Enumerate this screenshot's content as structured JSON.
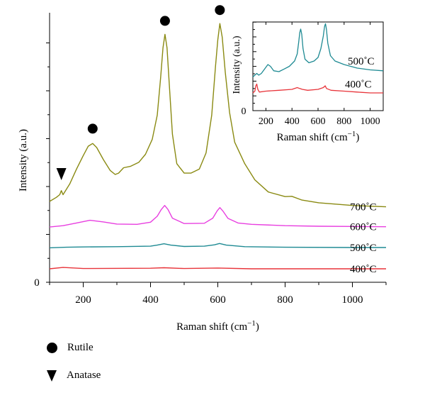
{
  "chart_data": [
    {
      "type": "line",
      "xlabel": "Raman shift (cm",
      "xlabel_sup": "−1",
      "xlabel_close": ")",
      "ylabel": "Intensity (a.u.)",
      "xlim": [
        100,
        1100
      ],
      "ylim": [
        0,
        100
      ],
      "x_ticks": [
        "200",
        "400",
        "600",
        "800",
        "1000"
      ],
      "y_ticks": [
        "0"
      ],
      "series": [
        {
          "name": "400˚C",
          "color": "#e8343a",
          "points": [
            [
              100,
              5.0
            ],
            [
              140,
              5.5
            ],
            [
              200,
              5.1
            ],
            [
              400,
              5.2
            ],
            [
              440,
              5.4
            ],
            [
              500,
              5.1
            ],
            [
              600,
              5.3
            ],
            [
              700,
              5.0
            ],
            [
              800,
              5.0
            ],
            [
              900,
              5.0
            ],
            [
              1000,
              5.0
            ],
            [
              1100,
              5.0
            ]
          ]
        },
        {
          "name": "500˚C",
          "color": "#1e8a93",
          "points": [
            [
              100,
              12.8
            ],
            [
              150,
              13.0
            ],
            [
              200,
              13.1
            ],
            [
              300,
              13.2
            ],
            [
              400,
              13.4
            ],
            [
              420,
              13.8
            ],
            [
              440,
              14.3
            ],
            [
              460,
              13.8
            ],
            [
              500,
              13.3
            ],
            [
              560,
              13.4
            ],
            [
              590,
              13.9
            ],
            [
              605,
              14.4
            ],
            [
              625,
              13.8
            ],
            [
              680,
              13.2
            ],
            [
              800,
              13.0
            ],
            [
              1000,
              12.9
            ],
            [
              1100,
              12.9
            ]
          ]
        },
        {
          "name": "600˚C",
          "color": "#e83fe0",
          "points": [
            [
              100,
              20.5
            ],
            [
              140,
              21.0
            ],
            [
              180,
              22.0
            ],
            [
              220,
              23.0
            ],
            [
              260,
              22.4
            ],
            [
              300,
              21.6
            ],
            [
              360,
              21.5
            ],
            [
              400,
              22.3
            ],
            [
              420,
              24.5
            ],
            [
              432,
              27.0
            ],
            [
              442,
              28.5
            ],
            [
              452,
              27.0
            ],
            [
              465,
              23.8
            ],
            [
              500,
              21.8
            ],
            [
              560,
              21.9
            ],
            [
              585,
              23.8
            ],
            [
              598,
              26.5
            ],
            [
              606,
              27.7
            ],
            [
              616,
              26.3
            ],
            [
              630,
              23.7
            ],
            [
              660,
              22.0
            ],
            [
              700,
              21.5
            ],
            [
              800,
              21.0
            ],
            [
              900,
              20.8
            ],
            [
              1000,
              20.7
            ],
            [
              1100,
              20.6
            ]
          ]
        },
        {
          "name": "700˚C",
          "color": "#8a8a12",
          "points": [
            [
              100,
              30.0
            ],
            [
              120,
              31.5
            ],
            [
              130,
              32.5
            ],
            [
              135,
              34.0
            ],
            [
              140,
              32.5
            ],
            [
              160,
              36.5
            ],
            [
              180,
              42.0
            ],
            [
              200,
              47.0
            ],
            [
              215,
              50.5
            ],
            [
              228,
              51.5
            ],
            [
              240,
              50.0
            ],
            [
              260,
              45.5
            ],
            [
              280,
              41.5
            ],
            [
              295,
              40.0
            ],
            [
              305,
              40.5
            ],
            [
              320,
              42.5
            ],
            [
              340,
              43.0
            ],
            [
              365,
              44.5
            ],
            [
              385,
              47.5
            ],
            [
              405,
              53.0
            ],
            [
              420,
              62.0
            ],
            [
              430,
              76.0
            ],
            [
              437,
              87.0
            ],
            [
              443,
              92.0
            ],
            [
              449,
              87.0
            ],
            [
              456,
              73.0
            ],
            [
              465,
              55.0
            ],
            [
              478,
              44.0
            ],
            [
              500,
              40.5
            ],
            [
              520,
              40.5
            ],
            [
              545,
              42.0
            ],
            [
              565,
              48.0
            ],
            [
              582,
              62.0
            ],
            [
              593,
              80.0
            ],
            [
              600,
              90.0
            ],
            [
              606,
              96.0
            ],
            [
              613,
              91.0
            ],
            [
              622,
              78.0
            ],
            [
              635,
              63.0
            ],
            [
              650,
              52.0
            ],
            [
              680,
              44.0
            ],
            [
              710,
              38.0
            ],
            [
              750,
              33.5
            ],
            [
              800,
              31.8
            ],
            [
              820,
              31.9
            ],
            [
              850,
              30.5
            ],
            [
              900,
              29.5
            ],
            [
              1000,
              28.5
            ],
            [
              1100,
              28.0
            ]
          ]
        }
      ],
      "series_labels": [
        "700˚C",
        "600˚C",
        "500˚C",
        "400˚C"
      ],
      "markers": [
        {
          "type": "rutile",
          "x": 228,
          "y": 57
        },
        {
          "type": "rutile",
          "x": 443,
          "y": 97
        },
        {
          "type": "rutile",
          "x": 606,
          "y": 101
        },
        {
          "type": "anatase",
          "x": 135,
          "y": 40
        }
      ]
    },
    {
      "type": "line",
      "xlabel": "Raman shift (cm",
      "xlabel_sup": "−1",
      "xlabel_close": ")",
      "ylabel": "Intensity (a.u.)",
      "xlim": [
        100,
        1100
      ],
      "ylim": [
        0,
        100
      ],
      "x_ticks": [
        "200",
        "400",
        "600",
        "800",
        "1000"
      ],
      "y_ticks": [
        "0"
      ],
      "series_labels": [
        "500˚C",
        "400˚C"
      ],
      "series": [
        {
          "name": "500˚C",
          "color": "#1e8a93",
          "points": [
            [
              100,
              38
            ],
            [
              130,
              42
            ],
            [
              145,
              40
            ],
            [
              165,
              42
            ],
            [
              190,
              47
            ],
            [
              215,
              52
            ],
            [
              235,
              50
            ],
            [
              260,
              45
            ],
            [
              300,
              44
            ],
            [
              340,
              47
            ],
            [
              380,
              50
            ],
            [
              420,
              56
            ],
            [
              440,
              64
            ],
            [
              452,
              78
            ],
            [
              460,
              88
            ],
            [
              467,
              92
            ],
            [
              475,
              86
            ],
            [
              485,
              70
            ],
            [
              500,
              58
            ],
            [
              530,
              54
            ],
            [
              570,
              56
            ],
            [
              600,
              60
            ],
            [
              622,
              70
            ],
            [
              640,
              84
            ],
            [
              650,
              95
            ],
            [
              657,
              98
            ],
            [
              664,
              92
            ],
            [
              675,
              76
            ],
            [
              695,
              62
            ],
            [
              730,
              56
            ],
            [
              800,
              52
            ],
            [
              900,
              48
            ],
            [
              1000,
              46
            ],
            [
              1100,
              45
            ]
          ]
        },
        {
          "name": "400˚C",
          "color": "#e8343a",
          "points": [
            [
              100,
              20
            ],
            [
              115,
              22
            ],
            [
              123,
              28
            ],
            [
              130,
              30
            ],
            [
              138,
              24
            ],
            [
              150,
              21
            ],
            [
              200,
              22
            ],
            [
              300,
              23
            ],
            [
              400,
              24
            ],
            [
              440,
              26
            ],
            [
              460,
              25
            ],
            [
              480,
              24
            ],
            [
              520,
              23
            ],
            [
              600,
              24
            ],
            [
              640,
              26
            ],
            [
              655,
              28
            ],
            [
              665,
              25
            ],
            [
              700,
              23
            ],
            [
              800,
              22
            ],
            [
              900,
              21
            ],
            [
              1000,
              20
            ],
            [
              1100,
              20
            ]
          ]
        }
      ]
    }
  ],
  "legend": [
    {
      "symbol": "circle",
      "label": "Rutile"
    },
    {
      "symbol": "triangle",
      "label": "Anatase"
    }
  ]
}
